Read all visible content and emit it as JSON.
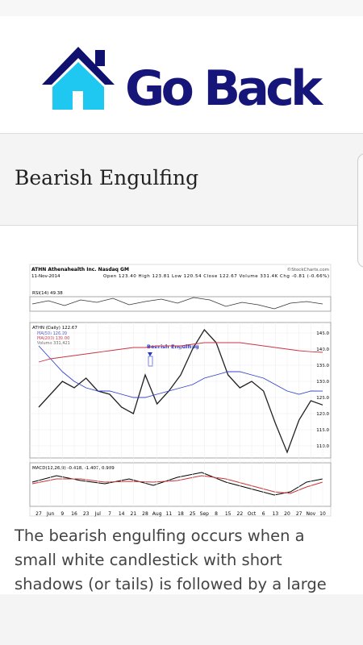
{
  "header": {
    "logo_text": "Go Back"
  },
  "title": "Bearish Engulfing",
  "paragraph": [
    "The bearish engulfing occurs when a",
    "small white candlestick with short",
    "shadows (or tails) is followed by a large"
  ],
  "chart_data": {
    "type": "line",
    "symbol": "ATHN Athenahealth Inc. Nasdaq GM",
    "source": "©StockCharts.com",
    "date": "11-Nov-2014",
    "quote": "Open 123.40 High 123.81 Low 120.54 Close 122.67 Volume 331.4K Chg -0.81 (-0.66%)",
    "rsi_label": "RSI(14) 49.38",
    "price_label": "ATHN (Daily) 122.67",
    "ma_labels": [
      "MA(50) 126.99",
      "MA(200) 139.00"
    ],
    "volume_label": "Volume 331,421",
    "macd_label": "MACD(12,26,9) -0.418, -1.407, 0.989",
    "annotation": "Bearish Engulfing",
    "categories": [
      "27",
      "Jun",
      "9",
      "16",
      "23",
      "Jul",
      "7",
      "14",
      "21",
      "28",
      "Aug",
      "11",
      "18",
      "25",
      "Sep",
      "8",
      "15",
      "22",
      "Oct",
      "6",
      "13",
      "20",
      "27",
      "Nov",
      "10"
    ],
    "series": [
      {
        "name": "ATHN",
        "color": "#222222",
        "values": [
          122,
          126,
          130,
          128,
          131,
          127,
          126,
          122,
          120,
          132,
          123,
          127,
          132,
          140,
          146,
          142,
          132,
          128,
          130,
          127,
          117,
          108,
          118,
          124,
          122.67
        ]
      },
      {
        "name": "MA(50)",
        "color": "#3344cc",
        "values": [
          141,
          137,
          133,
          130,
          128,
          127,
          127,
          126,
          125,
          125,
          126,
          127,
          128,
          129,
          131,
          132,
          133,
          133,
          132,
          131,
          129,
          127,
          126,
          127,
          126.99
        ]
      },
      {
        "name": "MA(200)",
        "color": "#cc3344",
        "values": [
          136,
          137,
          137.5,
          138,
          138.5,
          139,
          139.5,
          140,
          140.5,
          140.5,
          141,
          141,
          141,
          141.5,
          142,
          142,
          142,
          142,
          141.5,
          141,
          140.5,
          140,
          139.5,
          139.2,
          139
        ]
      }
    ],
    "ylim": [
      107,
      147.5
    ],
    "yticks": [
      {
        "value": 110,
        "label": "110.0"
      },
      {
        "value": 115,
        "label": "115.0"
      },
      {
        "value": 120,
        "label": "120.0"
      },
      {
        "value": 125,
        "label": "125.0"
      },
      {
        "value": 130,
        "label": "130.0"
      },
      {
        "value": 135,
        "label": "135.0"
      },
      {
        "value": 140,
        "label": "140.0"
      },
      {
        "value": 145,
        "label": "145.0"
      }
    ]
  }
}
